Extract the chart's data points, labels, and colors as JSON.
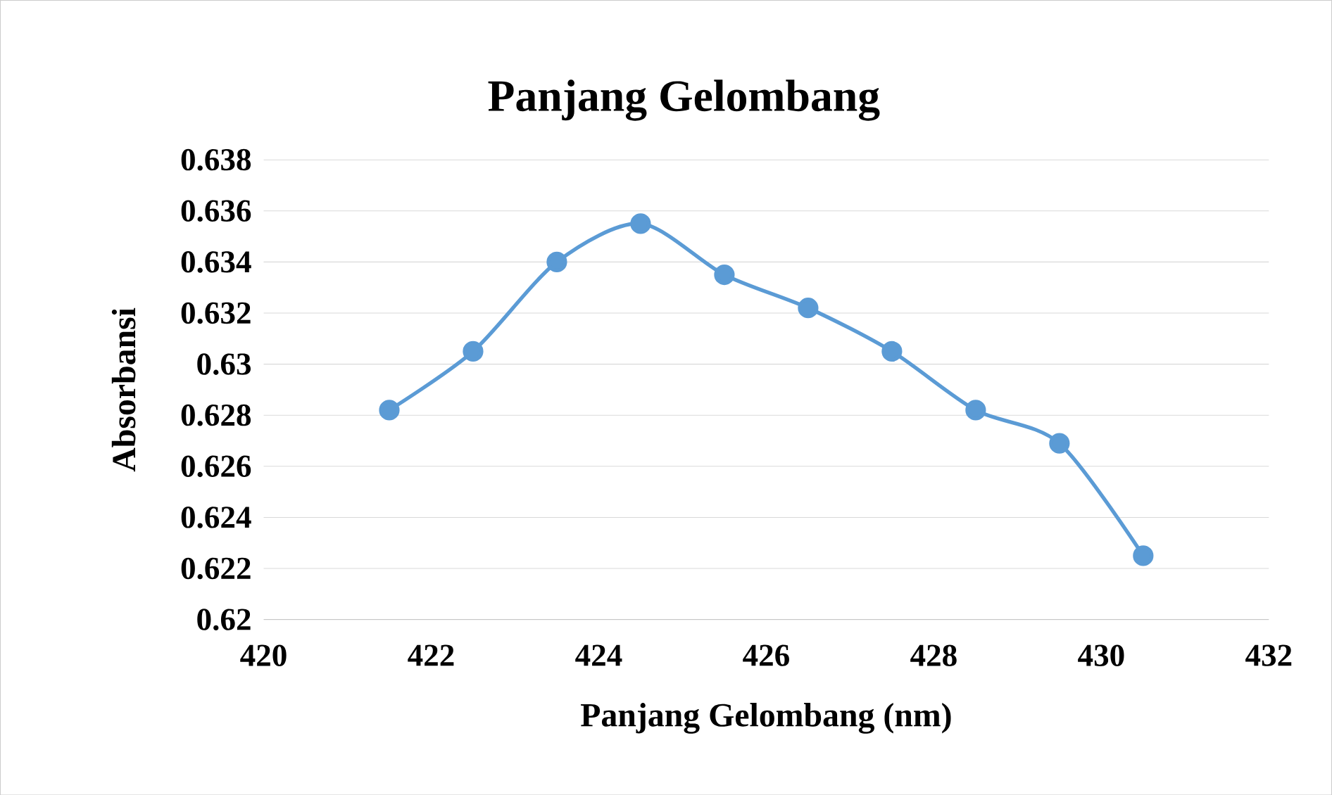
{
  "chart_data": {
    "type": "line",
    "title": "Panjang Gelombang",
    "xlabel": "Panjang Gelombang (nm)",
    "ylabel": "Absorbansi",
    "x": [
      421.5,
      422.5,
      423.5,
      424.5,
      425.5,
      426.5,
      427.5,
      428.5,
      429.5,
      430.5
    ],
    "series": [
      {
        "color": "#5b9bd5",
        "values": [
          0.6282,
          0.6305,
          0.634,
          0.6355,
          0.6335,
          0.6322,
          0.6305,
          0.6282,
          0.6269,
          0.6225
        ]
      }
    ],
    "xlim": [
      420,
      432
    ],
    "xticks": [
      420,
      422,
      424,
      426,
      428,
      430,
      432
    ],
    "ylim": [
      0.62,
      0.638
    ],
    "yticks": [
      0.62,
      0.622,
      0.624,
      0.626,
      0.628,
      0.63,
      0.632,
      0.634,
      0.636,
      0.638
    ],
    "grid": "y",
    "marker": "circle",
    "line_style": "solid"
  }
}
